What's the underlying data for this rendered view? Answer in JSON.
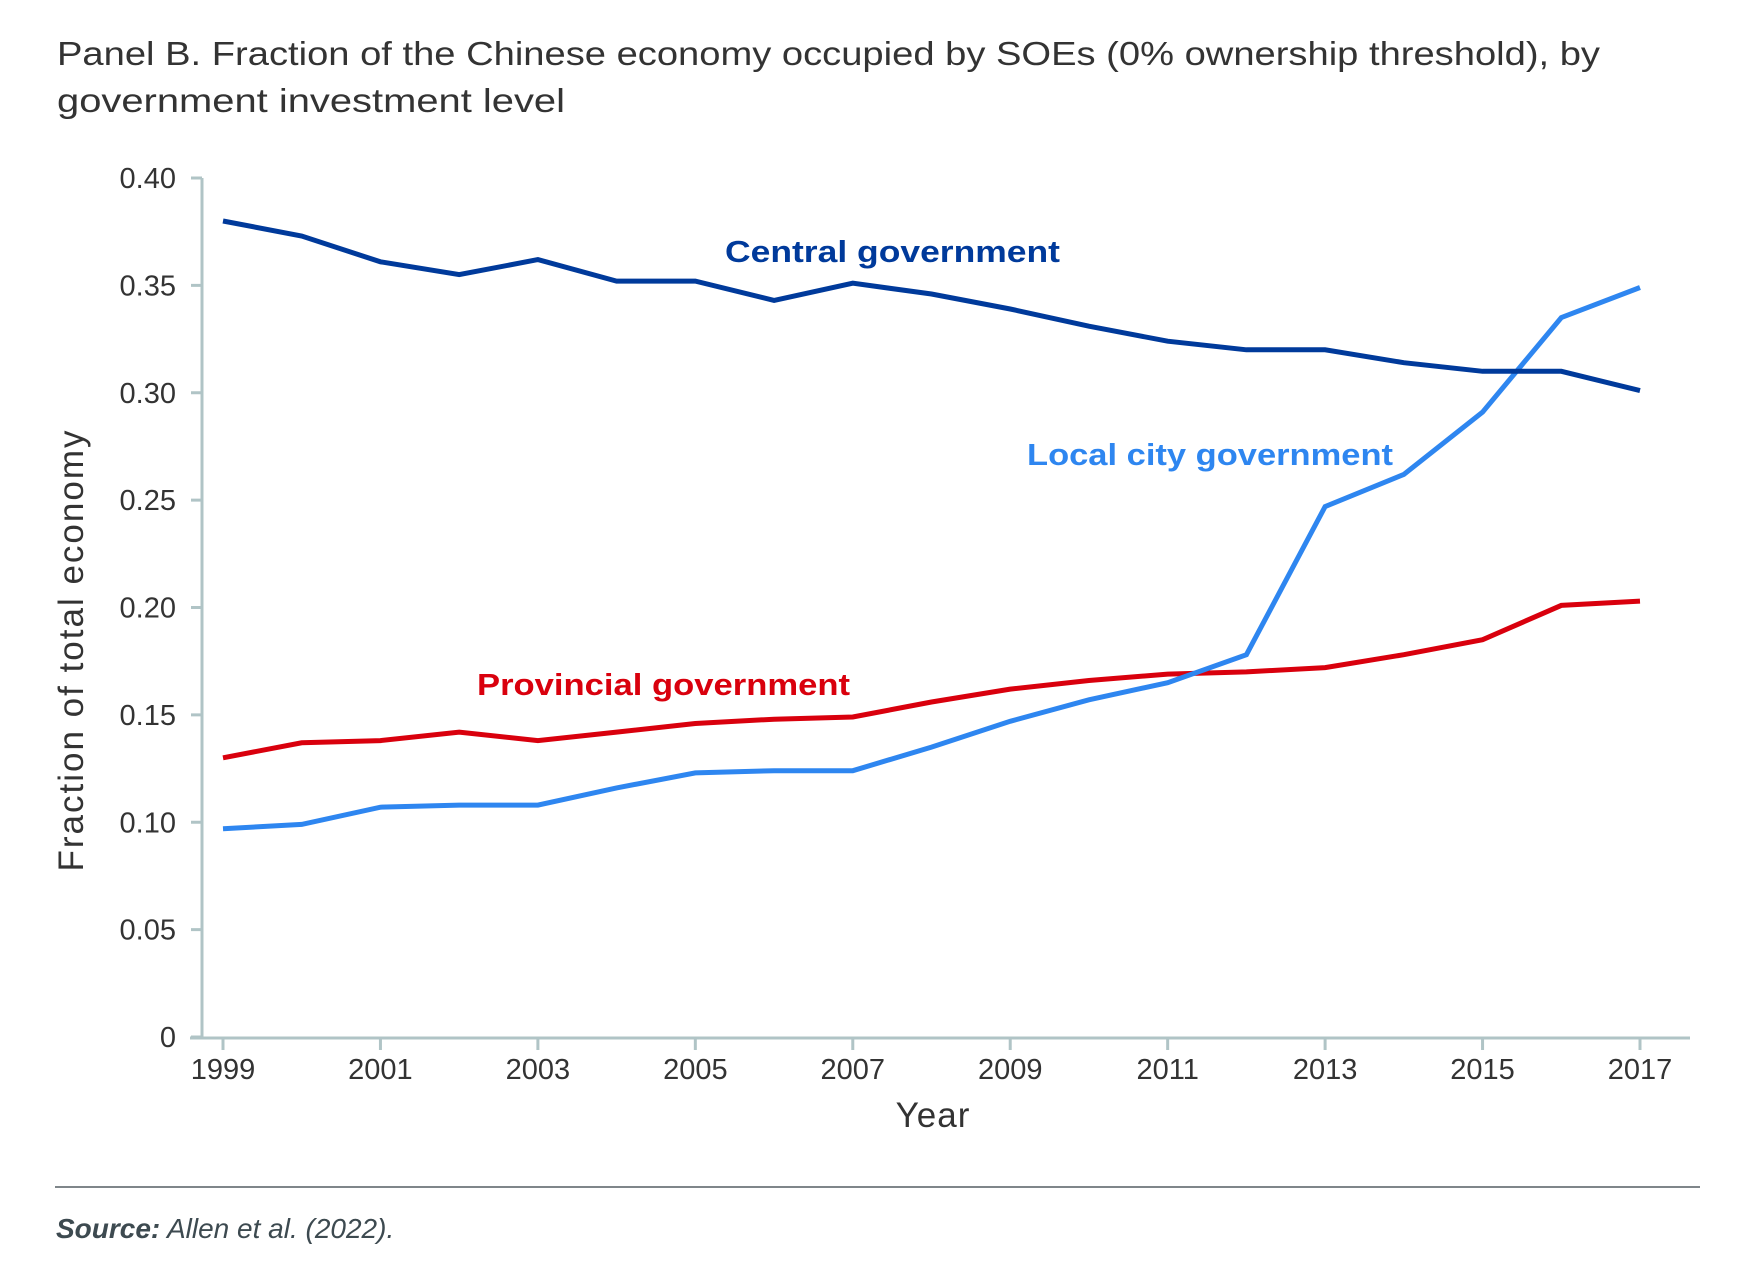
{
  "title_lines": [
    "Panel B. Fraction of the Chinese economy occupied by SOEs (0% ownership threshold), by",
    "government investment level"
  ],
  "source": {
    "label": "Source:",
    "text": " Allen et al. (2022)."
  },
  "colors": {
    "central": "#003A9B",
    "local": "#2E86F0",
    "provincial": "#D9000D",
    "axis": "#B0C4C6",
    "text": "#333333",
    "rule": "#555F63"
  },
  "chart_data": {
    "type": "line",
    "title": "Panel B. Fraction of the Chinese economy occupied by SOEs (0% ownership threshold), by government investment level",
    "xlabel": "Year",
    "ylabel": "Fraction of total economy",
    "xlim": [
      1999,
      2017
    ],
    "ylim": [
      0,
      0.4
    ],
    "x_ticks": [
      "1999",
      "2001",
      "2003",
      "2005",
      "2007",
      "2009",
      "2011",
      "2013",
      "2015",
      "2017"
    ],
    "y_ticks": [
      "0",
      "0.05",
      "0.10",
      "0.15",
      "0.20",
      "0.25",
      "0.30",
      "0.35",
      "0.40"
    ],
    "grid": false,
    "legend": "inline labels",
    "x": [
      1999,
      2000,
      2001,
      2002,
      2003,
      2004,
      2005,
      2006,
      2007,
      2008,
      2009,
      2010,
      2011,
      2012,
      2013,
      2014,
      2015,
      2016,
      2017
    ],
    "series": [
      {
        "name": "Central government",
        "key": "central",
        "values": [
          0.38,
          0.373,
          0.361,
          0.355,
          0.362,
          0.352,
          0.352,
          0.343,
          0.351,
          0.346,
          0.339,
          0.331,
          0.324,
          0.32,
          0.32,
          0.314,
          0.31,
          0.31,
          0.301
        ]
      },
      {
        "name": "Local city government",
        "key": "local",
        "values": [
          0.097,
          0.099,
          0.107,
          0.108,
          0.108,
          0.116,
          0.123,
          0.124,
          0.124,
          0.135,
          0.147,
          0.157,
          0.165,
          0.178,
          0.247,
          0.262,
          0.291,
          0.335,
          0.349
        ]
      },
      {
        "name": "Provincial government",
        "key": "provincial",
        "values": [
          0.13,
          0.137,
          0.138,
          0.142,
          0.138,
          0.142,
          0.146,
          0.148,
          0.149,
          0.156,
          0.162,
          0.166,
          0.169,
          0.17,
          0.172,
          0.178,
          0.185,
          0.201,
          0.203
        ]
      }
    ]
  }
}
